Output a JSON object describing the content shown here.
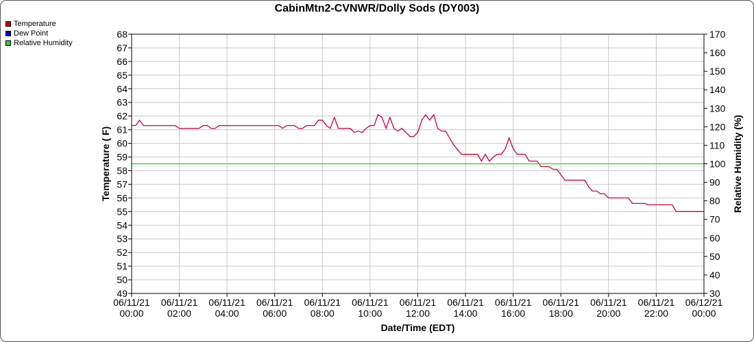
{
  "chart_data": {
    "type": "line",
    "title": "CabinMtn2-CVNWR/Dolly Sods (DY003)",
    "xlabel": "Date/Time (EDT)",
    "ylabel": "Temperature ( F)",
    "y2label": "Relative Humidity (%)",
    "xlim": [
      0,
      24
    ],
    "ylim": [
      49,
      68
    ],
    "y2lim": [
      30,
      170
    ],
    "grid": true,
    "legend_position": "top-left",
    "x_ticks": [
      {
        "line1": "06/11/21",
        "line2": "00:00",
        "x": 0
      },
      {
        "line1": "06/11/21",
        "line2": "02:00",
        "x": 2
      },
      {
        "line1": "06/11/21",
        "line2": "04:00",
        "x": 4
      },
      {
        "line1": "06/11/21",
        "line2": "06:00",
        "x": 6
      },
      {
        "line1": "06/11/21",
        "line2": "08:00",
        "x": 8
      },
      {
        "line1": "06/11/21",
        "line2": "10:00",
        "x": 10
      },
      {
        "line1": "06/11/21",
        "line2": "12:00",
        "x": 12
      },
      {
        "line1": "06/11/21",
        "line2": "14:00",
        "x": 14
      },
      {
        "line1": "06/11/21",
        "line2": "16:00",
        "x": 16
      },
      {
        "line1": "06/11/21",
        "line2": "18:00",
        "x": 18
      },
      {
        "line1": "06/11/21",
        "line2": "20:00",
        "x": 20
      },
      {
        "line1": "06/11/21",
        "line2": "22:00",
        "x": 22
      },
      {
        "line1": "06/12/21",
        "line2": "00:00",
        "x": 24
      }
    ],
    "y_ticks": [
      49,
      50,
      51,
      52,
      53,
      54,
      55,
      56,
      57,
      58,
      59,
      60,
      61,
      62,
      63,
      64,
      65,
      66,
      67,
      68
    ],
    "y2_ticks": [
      30,
      40,
      50,
      60,
      70,
      80,
      90,
      100,
      110,
      120,
      130,
      140,
      150,
      160,
      170
    ],
    "series": [
      {
        "name": "Temperature",
        "color": "#cc0000",
        "axis": "left",
        "points": [
          [
            0.0,
            61.3
          ],
          [
            0.17,
            61.3
          ],
          [
            0.33,
            61.7
          ],
          [
            0.5,
            61.3
          ],
          [
            1.0,
            61.3
          ],
          [
            1.5,
            61.3
          ],
          [
            1.83,
            61.3
          ],
          [
            2.0,
            61.1
          ],
          [
            2.5,
            61.1
          ],
          [
            2.83,
            61.1
          ],
          [
            3.0,
            61.3
          ],
          [
            3.17,
            61.3
          ],
          [
            3.33,
            61.1
          ],
          [
            3.5,
            61.1
          ],
          [
            3.67,
            61.3
          ],
          [
            4.0,
            61.3
          ],
          [
            5.0,
            61.3
          ],
          [
            6.0,
            61.3
          ],
          [
            6.17,
            61.3
          ],
          [
            6.33,
            61.1
          ],
          [
            6.5,
            61.3
          ],
          [
            6.83,
            61.3
          ],
          [
            7.0,
            61.1
          ],
          [
            7.17,
            61.1
          ],
          [
            7.33,
            61.3
          ],
          [
            7.67,
            61.3
          ],
          [
            7.83,
            61.7
          ],
          [
            8.0,
            61.7
          ],
          [
            8.17,
            61.3
          ],
          [
            8.33,
            61.1
          ],
          [
            8.5,
            61.9
          ],
          [
            8.67,
            61.1
          ],
          [
            9.0,
            61.1
          ],
          [
            9.17,
            61.1
          ],
          [
            9.33,
            60.8
          ],
          [
            9.5,
            60.9
          ],
          [
            9.67,
            60.8
          ],
          [
            9.83,
            61.1
          ],
          [
            10.0,
            61.3
          ],
          [
            10.17,
            61.3
          ],
          [
            10.33,
            62.1
          ],
          [
            10.5,
            61.9
          ],
          [
            10.67,
            61.1
          ],
          [
            10.83,
            61.9
          ],
          [
            11.0,
            61.1
          ],
          [
            11.17,
            60.9
          ],
          [
            11.33,
            61.1
          ],
          [
            11.5,
            60.8
          ],
          [
            11.67,
            60.5
          ],
          [
            11.83,
            60.5
          ],
          [
            12.0,
            60.8
          ],
          [
            12.17,
            61.7
          ],
          [
            12.33,
            62.1
          ],
          [
            12.5,
            61.7
          ],
          [
            12.67,
            62.1
          ],
          [
            12.83,
            61.1
          ],
          [
            13.0,
            60.9
          ],
          [
            13.17,
            60.9
          ],
          [
            13.33,
            60.4
          ],
          [
            13.5,
            59.9
          ],
          [
            13.83,
            59.2
          ],
          [
            14.0,
            59.2
          ],
          [
            14.5,
            59.2
          ],
          [
            14.67,
            58.7
          ],
          [
            14.83,
            59.2
          ],
          [
            15.0,
            58.7
          ],
          [
            15.17,
            59.0
          ],
          [
            15.33,
            59.2
          ],
          [
            15.5,
            59.2
          ],
          [
            15.67,
            59.6
          ],
          [
            15.83,
            60.4
          ],
          [
            16.0,
            59.6
          ],
          [
            16.17,
            59.2
          ],
          [
            16.5,
            59.2
          ],
          [
            16.67,
            58.7
          ],
          [
            17.0,
            58.7
          ],
          [
            17.17,
            58.3
          ],
          [
            17.5,
            58.3
          ],
          [
            17.67,
            58.1
          ],
          [
            17.83,
            58.1
          ],
          [
            18.0,
            57.7
          ],
          [
            18.17,
            57.3
          ],
          [
            18.5,
            57.3
          ],
          [
            18.83,
            57.3
          ],
          [
            19.0,
            57.3
          ],
          [
            19.17,
            56.8
          ],
          [
            19.33,
            56.5
          ],
          [
            19.5,
            56.5
          ],
          [
            19.67,
            56.3
          ],
          [
            19.83,
            56.3
          ],
          [
            20.0,
            56.0
          ],
          [
            20.5,
            56.0
          ],
          [
            20.83,
            56.0
          ],
          [
            21.0,
            55.6
          ],
          [
            21.5,
            55.6
          ],
          [
            21.67,
            55.5
          ],
          [
            22.0,
            55.5
          ],
          [
            22.5,
            55.5
          ],
          [
            22.67,
            55.5
          ],
          [
            22.83,
            55.0
          ],
          [
            23.0,
            55.0
          ],
          [
            23.5,
            55.0
          ],
          [
            24.0,
            55.0
          ]
        ]
      },
      {
        "name": "Dew Point",
        "color": "#0000cc",
        "axis": "left",
        "points": []
      },
      {
        "name": "Relative Humidity",
        "color": "#00cc00",
        "axis": "right",
        "points": [
          [
            0,
            100
          ],
          [
            24,
            100
          ]
        ]
      }
    ]
  }
}
